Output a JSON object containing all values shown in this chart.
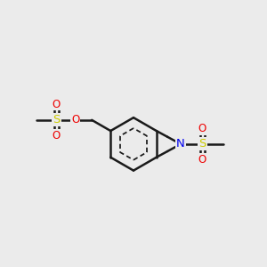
{
  "bg_color": "#ebebeb",
  "bond_color": "#1a1a1a",
  "bond_width": 1.8,
  "atom_colors": {
    "C": "#1a1a1a",
    "N": "#0000ee",
    "O": "#ee0000",
    "S": "#cccc00"
  },
  "font_size": 8.5,
  "figsize": [
    3.0,
    3.0
  ],
  "dpi": 100,
  "xlim": [
    0,
    10
  ],
  "ylim": [
    0,
    10
  ]
}
